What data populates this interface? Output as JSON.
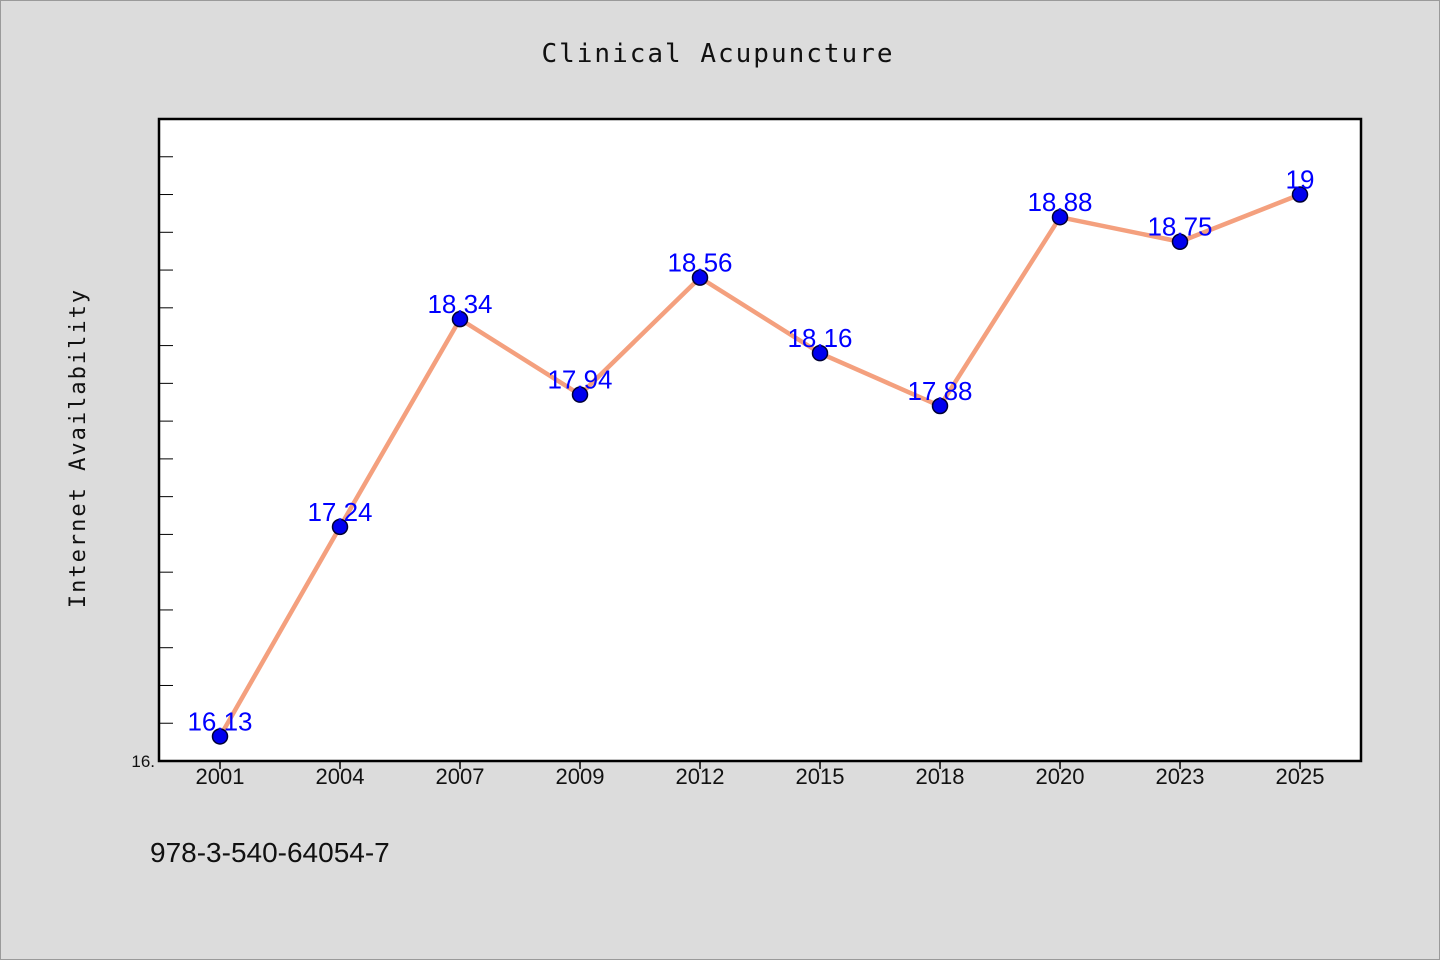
{
  "chart_data": {
    "type": "line",
    "title": "Clinical Acupuncture",
    "xlabel": "",
    "ylabel": "Internet Availability",
    "x": [
      "2001",
      "2004",
      "2007",
      "2009",
      "2012",
      "2015",
      "2018",
      "2020",
      "2023",
      "2025"
    ],
    "series": [
      {
        "values": [
          16.13,
          17.24,
          18.34,
          17.94,
          18.56,
          18.16,
          17.88,
          18.88,
          18.75,
          19
        ]
      }
    ],
    "value_labels": [
      "16.13",
      "17.24",
      "18.34",
      "17.94",
      "18.56",
      "18.16",
      "17.88",
      "18.88",
      "18.75",
      "19"
    ],
    "y_tick_labels": [
      "16."
    ],
    "ylim": [
      16.0,
      19.4
    ],
    "grid": false,
    "legend": "none",
    "colors": {
      "line": "#f4a07e",
      "marker_fill": "#0000ee",
      "marker_edge": "#000033",
      "label": "#0000ff",
      "plot_background": "#ffffff",
      "page_background": "#dcdcdc"
    }
  },
  "footnote": "978-3-540-64054-7"
}
